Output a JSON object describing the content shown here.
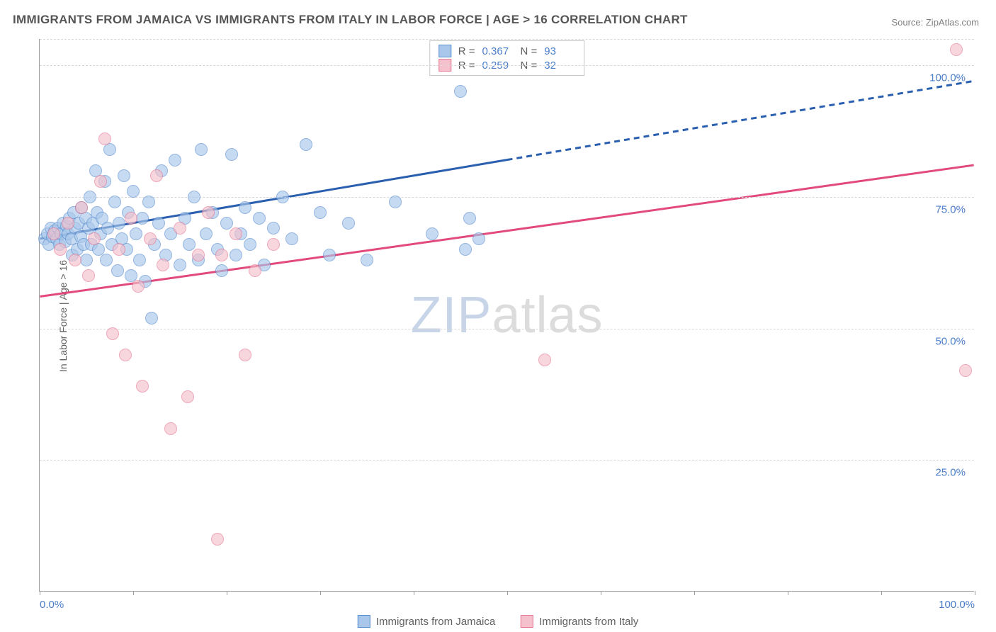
{
  "title": "IMMIGRANTS FROM JAMAICA VS IMMIGRANTS FROM ITALY IN LABOR FORCE | AGE > 16 CORRELATION CHART",
  "source": "Source: ZipAtlas.com",
  "ylabel": "In Labor Force | Age > 16",
  "watermark_z": "ZIP",
  "watermark_rest": "atlas",
  "chart": {
    "type": "scatter",
    "xlim": [
      0,
      100
    ],
    "ylim": [
      0,
      105
    ],
    "x_ticks": [
      0,
      10,
      20,
      30,
      40,
      50,
      60,
      70,
      80,
      90,
      100
    ],
    "y_gridlines": [
      25,
      50,
      75,
      100,
      105
    ],
    "y_tick_labels": [
      "25.0%",
      "50.0%",
      "75.0%",
      "100.0%"
    ],
    "y_tick_values": [
      25,
      50,
      75,
      100
    ],
    "x_tick_labels_shown": {
      "0": "0.0%",
      "100": "100.0%"
    },
    "point_radius": 9,
    "background_color": "#ffffff",
    "grid_color": "#d8d8d8",
    "axis_color": "#9e9e9e"
  },
  "series": [
    {
      "name": "Immigrants from Jamaica",
      "fill": "#a9c7ea",
      "stroke": "#5b8fd0",
      "fill_opacity": 0.65,
      "line_color": "#2a5fb0",
      "line_width": 3,
      "R": "0.367",
      "N": "93",
      "trend": {
        "x1": 0,
        "y1": 67,
        "x2": 100,
        "y2": 97,
        "solid_until_x": 50
      },
      "points": [
        [
          0.5,
          67
        ],
        [
          0.8,
          68
        ],
        [
          1.0,
          66
        ],
        [
          1.2,
          69
        ],
        [
          1.4,
          67.5
        ],
        [
          1.6,
          68.5
        ],
        [
          1.8,
          67
        ],
        [
          2.0,
          69
        ],
        [
          2.1,
          66
        ],
        [
          2.3,
          68
        ],
        [
          2.5,
          70
        ],
        [
          2.7,
          66.5
        ],
        [
          2.9,
          69.5
        ],
        [
          3.0,
          68
        ],
        [
          3.2,
          71
        ],
        [
          3.4,
          67
        ],
        [
          3.5,
          64
        ],
        [
          3.6,
          72
        ],
        [
          3.8,
          69
        ],
        [
          4.0,
          65
        ],
        [
          4.2,
          70
        ],
        [
          4.4,
          67.5
        ],
        [
          4.5,
          73
        ],
        [
          4.7,
          66
        ],
        [
          4.9,
          71
        ],
        [
          5.0,
          63
        ],
        [
          5.2,
          69
        ],
        [
          5.4,
          75
        ],
        [
          5.5,
          66
        ],
        [
          5.7,
          70
        ],
        [
          6.0,
          80
        ],
        [
          6.1,
          72
        ],
        [
          6.3,
          65
        ],
        [
          6.5,
          68
        ],
        [
          6.7,
          71
        ],
        [
          7.0,
          78
        ],
        [
          7.1,
          63
        ],
        [
          7.3,
          69
        ],
        [
          7.5,
          84
        ],
        [
          7.7,
          66
        ],
        [
          8.0,
          74
        ],
        [
          8.3,
          61
        ],
        [
          8.5,
          70
        ],
        [
          8.8,
          67
        ],
        [
          9.0,
          79
        ],
        [
          9.3,
          65
        ],
        [
          9.5,
          72
        ],
        [
          9.8,
          60
        ],
        [
          10.0,
          76
        ],
        [
          10.3,
          68
        ],
        [
          10.7,
          63
        ],
        [
          11.0,
          71
        ],
        [
          11.3,
          59
        ],
        [
          11.7,
          74
        ],
        [
          12.0,
          52
        ],
        [
          12.3,
          66
        ],
        [
          12.7,
          70
        ],
        [
          13.0,
          80
        ],
        [
          13.5,
          64
        ],
        [
          14.0,
          68
        ],
        [
          14.5,
          82
        ],
        [
          15.0,
          62
        ],
        [
          15.5,
          71
        ],
        [
          16.0,
          66
        ],
        [
          16.5,
          75
        ],
        [
          17.0,
          63
        ],
        [
          17.3,
          84
        ],
        [
          17.8,
          68
        ],
        [
          18.5,
          72
        ],
        [
          19.0,
          65
        ],
        [
          19.5,
          61
        ],
        [
          20.0,
          70
        ],
        [
          20.5,
          83
        ],
        [
          21.0,
          64
        ],
        [
          21.5,
          68
        ],
        [
          22.0,
          73
        ],
        [
          22.5,
          66
        ],
        [
          23.5,
          71
        ],
        [
          24.0,
          62
        ],
        [
          25.0,
          69
        ],
        [
          26.0,
          75
        ],
        [
          27.0,
          67
        ],
        [
          28.5,
          85
        ],
        [
          30.0,
          72
        ],
        [
          31.0,
          64
        ],
        [
          33.0,
          70
        ],
        [
          35.0,
          63
        ],
        [
          38.0,
          74
        ],
        [
          42.0,
          68
        ],
        [
          45.0,
          95
        ],
        [
          45.5,
          65
        ],
        [
          46.0,
          71
        ],
        [
          47.0,
          67
        ]
      ]
    },
    {
      "name": "Immigrants from Italy",
      "fill": "#f4c1cc",
      "stroke": "#e77a97",
      "fill_opacity": 0.65,
      "line_color": "#e24a7b",
      "line_width": 3,
      "R": "0.259",
      "N": "32",
      "trend": {
        "x1": 0,
        "y1": 56,
        "x2": 100,
        "y2": 81,
        "solid_until_x": 100
      },
      "points": [
        [
          1.5,
          68
        ],
        [
          2.2,
          65
        ],
        [
          3.0,
          70
        ],
        [
          3.8,
          63
        ],
        [
          4.5,
          73
        ],
        [
          5.2,
          60
        ],
        [
          5.8,
          67
        ],
        [
          6.5,
          78
        ],
        [
          7.0,
          86
        ],
        [
          7.8,
          49
        ],
        [
          8.5,
          65
        ],
        [
          9.2,
          45
        ],
        [
          9.8,
          71
        ],
        [
          10.5,
          58
        ],
        [
          11.0,
          39
        ],
        [
          11.8,
          67
        ],
        [
          12.5,
          79
        ],
        [
          13.2,
          62
        ],
        [
          14.0,
          31
        ],
        [
          15.0,
          69
        ],
        [
          15.8,
          37
        ],
        [
          17.0,
          64
        ],
        [
          18.0,
          72
        ],
        [
          19.5,
          64
        ],
        [
          21.0,
          68
        ],
        [
          22.0,
          45
        ],
        [
          23.0,
          61
        ],
        [
          25.0,
          66
        ],
        [
          19.0,
          10
        ],
        [
          54.0,
          44
        ],
        [
          98.0,
          103
        ],
        [
          99.0,
          42
        ]
      ]
    }
  ],
  "legend": {
    "items": [
      {
        "label": "Immigrants from Jamaica",
        "fill": "#a9c7ea",
        "stroke": "#5b8fd0"
      },
      {
        "label": "Immigrants from Italy",
        "fill": "#f4c1cc",
        "stroke": "#e77a97"
      }
    ]
  }
}
